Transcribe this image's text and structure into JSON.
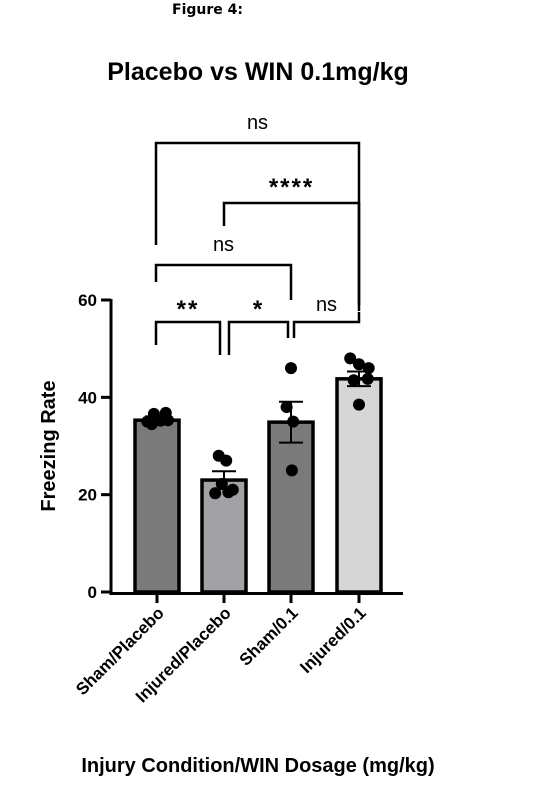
{
  "figure_label": "Figure 4:",
  "chart_data": {
    "type": "bar",
    "title": "Placebo vs WIN 0.1mg/kg",
    "xlabel": "Injury Condition/WIN Dosage (mg/kg)",
    "ylabel": "Freezing Rate",
    "ylim": [
      0,
      60
    ],
    "yticks": [
      0,
      20,
      40,
      60
    ],
    "categories": [
      "Sham/Placebo",
      "Injured/Placebo",
      "Sham/0.1",
      "Injured/0.1"
    ],
    "values": [
      35.3,
      23.0,
      34.9,
      43.8
    ],
    "error_sem": [
      0.8,
      1.8,
      4.2,
      1.5
    ],
    "bar_colors": [
      "#7a7a7a",
      "#a2a2a6",
      "#7a7a7a",
      "#d6d6d6"
    ],
    "points": [
      [
        [
          -0.22,
          35.0
        ],
        [
          -0.07,
          36.6
        ],
        [
          0.08,
          35.2
        ],
        [
          0.2,
          36.8
        ],
        [
          0.25,
          35.3
        ],
        [
          -0.12,
          34.5
        ]
      ],
      [
        [
          -0.2,
          20.3
        ],
        [
          -0.12,
          28.0
        ],
        [
          0.05,
          27.0
        ],
        [
          0.2,
          21.0
        ],
        [
          0.1,
          20.5
        ],
        [
          -0.05,
          22.2
        ]
      ],
      [
        [
          0.0,
          46.0
        ],
        [
          -0.1,
          38.0
        ],
        [
          0.05,
          35.0
        ],
        [
          0.02,
          25.0
        ]
      ],
      [
        [
          -0.2,
          48.0
        ],
        [
          0.0,
          46.8
        ],
        [
          0.22,
          46.0
        ],
        [
          -0.12,
          43.5
        ],
        [
          0.2,
          43.8
        ],
        [
          0.0,
          38.5
        ]
      ]
    ],
    "comparisons": [
      {
        "from": 0,
        "to": 3,
        "label": "ns"
      },
      {
        "from": 1,
        "to": 3,
        "label": "****"
      },
      {
        "from": 0,
        "to": 2,
        "label": "ns"
      },
      {
        "from": 0,
        "to": 1,
        "label": "**"
      },
      {
        "from": 1,
        "to": 2,
        "label": "*"
      },
      {
        "from": 2,
        "to": 3,
        "label": "ns"
      }
    ],
    "grid": false
  }
}
